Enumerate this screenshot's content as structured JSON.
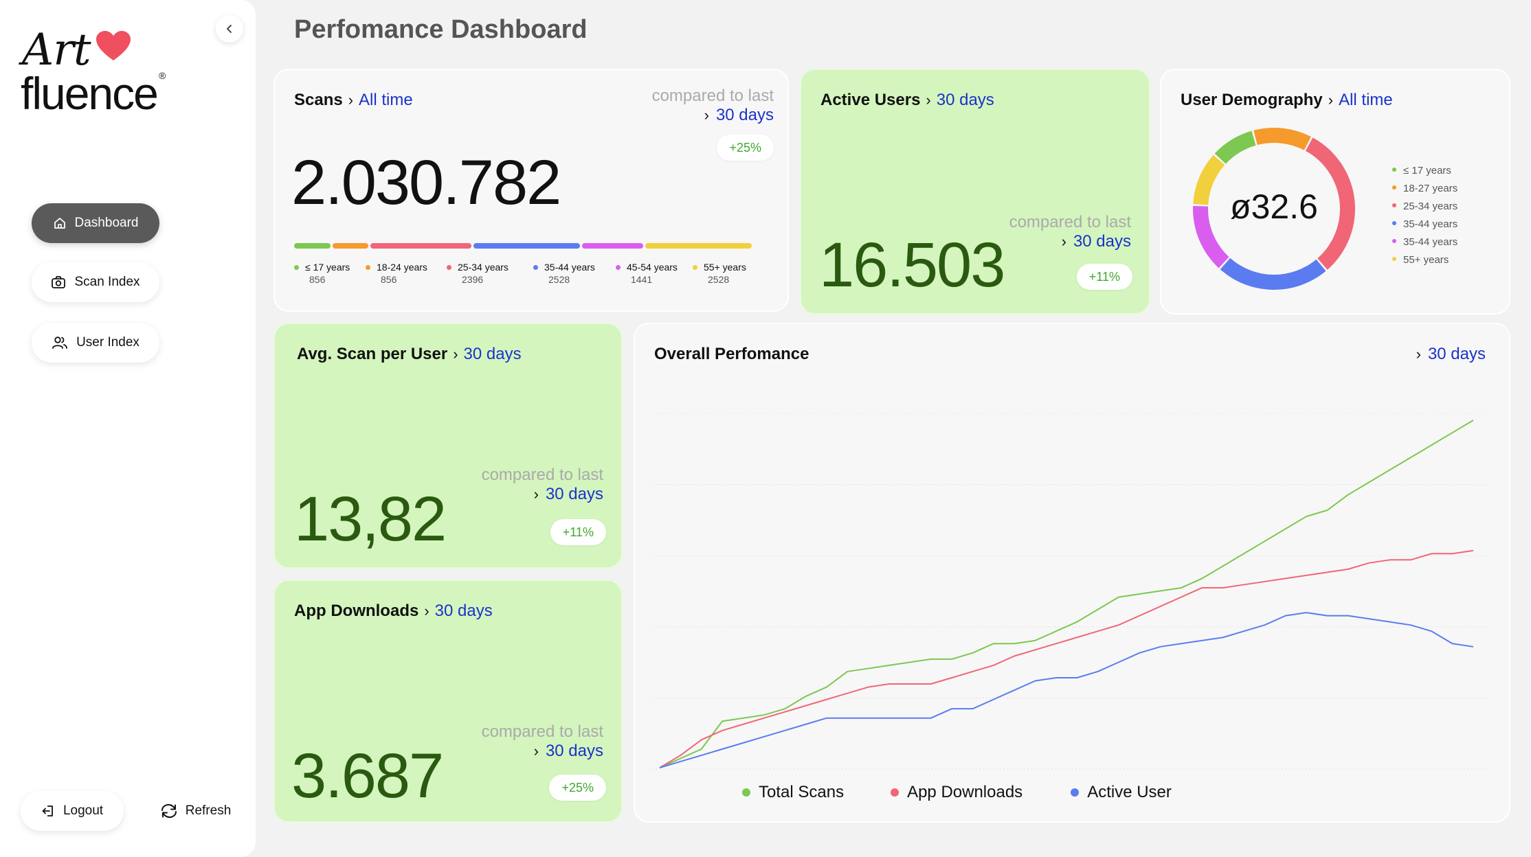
{
  "sidebar": {
    "logo": {
      "art": "Art",
      "fluence": "fluence",
      "reg": "®"
    },
    "nav": [
      {
        "label": "Dashboard",
        "icon": "home-icon",
        "active": true
      },
      {
        "label": "Scan Index",
        "icon": "camera-icon",
        "active": false
      },
      {
        "label": "User Index",
        "icon": "users-icon",
        "active": false
      }
    ],
    "logout_label": "Logout",
    "refresh_label": "Refresh"
  },
  "page_title": "Perfomance Dashboard",
  "compare_label": "compared to last",
  "scans": {
    "title": "Scans",
    "period": "All time",
    "compare_period": "30 days",
    "value": "2.030.782",
    "change": "+25%",
    "segments": [
      {
        "label": "≤ 17 years",
        "count": "856",
        "color": "#7cc850"
      },
      {
        "label": "18-24 years",
        "count": "856",
        "color": "#f59a2c"
      },
      {
        "label": "25-34 years",
        "count": "2396",
        "color": "#f06676"
      },
      {
        "label": "35-44 years",
        "count": "2528",
        "color": "#5b7cf0"
      },
      {
        "label": "45-54 years",
        "count": "1441",
        "color": "#d95ef0"
      },
      {
        "label": "55+ years",
        "count": "2528",
        "color": "#f2cf3c"
      }
    ]
  },
  "active_users": {
    "title": "Active Users",
    "period": "30 days",
    "compare_period": "30 days",
    "value": "16.503",
    "change": "+11%"
  },
  "demography": {
    "title": "User Demography",
    "period": "All time",
    "average": "ø32.6",
    "legend": [
      {
        "label": "≤ 17 years",
        "color": "#7cc850"
      },
      {
        "label": "18-27 years",
        "color": "#f59a2c"
      },
      {
        "label": "25-34 years",
        "color": "#f06676"
      },
      {
        "label": "35-44 years",
        "color": "#5b7cf0"
      },
      {
        "label": "35-44 years",
        "color": "#d95ef0"
      },
      {
        "label": "55+ years",
        "color": "#f2cf3c"
      }
    ]
  },
  "avg_scan": {
    "title": "Avg. Scan per User",
    "period": "30 days",
    "compare_period": "30 days",
    "value": "13,82",
    "change": "+11%"
  },
  "app_downloads": {
    "title": "App Downloads",
    "period": "30 days",
    "compare_period": "30 days",
    "value": "3.687",
    "change": "+25%"
  },
  "performance": {
    "title": "Overall Perfomance",
    "period": "30 days"
  },
  "chart_data": [
    {
      "type": "pie",
      "title": "User Demography",
      "categories": [
        "≤ 17 years",
        "18-27 years",
        "25-34 years",
        "35-44 years",
        "35-44 years",
        "55+ years"
      ],
      "values": [
        9,
        12,
        31,
        23,
        14,
        11
      ],
      "colors": [
        "#7cc850",
        "#f59a2c",
        "#f06676",
        "#5b7cf0",
        "#d95ef0",
        "#f2cf3c"
      ],
      "donut": true,
      "legend": "right"
    },
    {
      "type": "line",
      "title": "Overall Perfomance",
      "x": [
        1,
        2,
        3,
        4,
        5,
        6,
        7,
        8,
        9,
        10,
        11,
        12,
        13,
        14,
        15,
        16,
        17,
        18,
        19,
        20,
        21,
        22,
        23,
        24,
        25,
        26,
        27,
        28,
        29,
        30,
        31,
        32,
        33,
        34,
        35,
        36,
        37,
        38,
        39,
        40
      ],
      "series": [
        {
          "name": "Total Scans",
          "color": "#7cc850",
          "values": [
            0,
            3,
            6,
            15,
            16,
            17,
            19,
            23,
            26,
            31,
            32,
            33,
            34,
            35,
            35,
            37,
            40,
            40,
            41,
            44,
            47,
            51,
            55,
            56,
            57,
            58,
            61,
            65,
            69,
            73,
            77,
            81,
            83,
            88,
            92,
            96,
            100,
            104,
            108,
            112
          ]
        },
        {
          "name": "App Downloads",
          "color": "#f06676",
          "values": [
            0,
            4,
            9,
            12,
            14,
            16,
            18,
            20,
            22,
            24,
            26,
            27,
            27,
            27,
            29,
            31,
            33,
            36,
            38,
            40,
            42,
            44,
            46,
            49,
            52,
            55,
            58,
            58,
            59,
            60,
            61,
            62,
            63,
            64,
            66,
            67,
            67,
            69,
            69,
            70
          ]
        },
        {
          "name": "Active User",
          "color": "#5b7cf0",
          "values": [
            0,
            2,
            4,
            6,
            8,
            10,
            12,
            14,
            16,
            16,
            16,
            16,
            16,
            16,
            19,
            19,
            22,
            25,
            28,
            29,
            29,
            31,
            34,
            37,
            39,
            40,
            41,
            42,
            44,
            46,
            49,
            50,
            49,
            49,
            48,
            47,
            46,
            44,
            40,
            39
          ]
        }
      ],
      "grid": true,
      "legend": "bottom"
    }
  ]
}
